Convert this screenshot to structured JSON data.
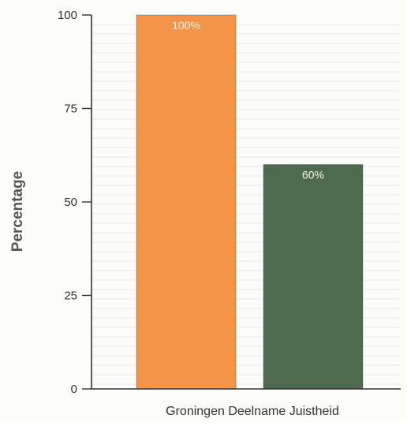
{
  "chart_data": {
    "type": "bar",
    "categories": [
      "",
      ""
    ],
    "values": [
      100,
      60
    ],
    "data_labels": [
      "100%",
      "60%"
    ],
    "title": "",
    "xlabel": "Groningen Deelname Juistheid",
    "ylabel": "Percentage",
    "ylim": [
      0,
      100
    ],
    "yticks": [
      0,
      25,
      50,
      75,
      100
    ],
    "grid": true,
    "bar_colors": [
      "#f39449",
      "#4f6b4f"
    ],
    "axis_color": "#333333",
    "grid_color": "#e9e9e6",
    "tick_label_color": "#333333",
    "ylabel_color": "#555555",
    "data_label_color": "#fff6ea"
  }
}
